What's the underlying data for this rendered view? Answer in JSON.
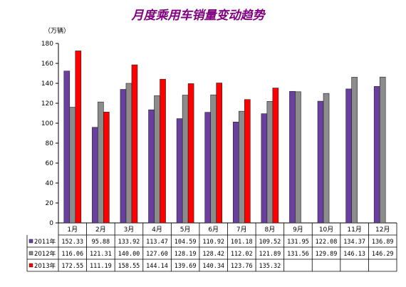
{
  "chart_data": {
    "type": "bar",
    "title": "月度乘用车销量变动趋势",
    "unit_label": "（万辆）",
    "ylim": [
      0,
      180
    ],
    "yticks": [
      0,
      20,
      40,
      60,
      80,
      100,
      120,
      140,
      160,
      180
    ],
    "grid": false,
    "legend": "data-table-bottom",
    "categories": [
      "1月",
      "2月",
      "3月",
      "4月",
      "5月",
      "6月",
      "7月",
      "8月",
      "9月",
      "10月",
      "11月",
      "12月"
    ],
    "series": [
      {
        "name": "2011年",
        "color": "#6a3fa0",
        "values": [
          152.33,
          95.88,
          133.92,
          113.47,
          104.59,
          110.92,
          101.18,
          109.52,
          131.95,
          122.08,
          134.37,
          136.89
        ],
        "labels": [
          "152.33",
          "95.88",
          "133.92",
          "113.47",
          "104.59",
          "110.92",
          "101.18",
          "109.52",
          "131.95",
          "122.08",
          "134.37",
          "136.89"
        ]
      },
      {
        "name": "2012年",
        "color": "#8c8c8c",
        "values": [
          116.06,
          121.31,
          140.0,
          127.6,
          128.19,
          128.42,
          112.02,
          121.89,
          131.56,
          129.89,
          146.13,
          146.29
        ],
        "labels": [
          "116.06",
          "121.31",
          "140.00",
          "127.60",
          "128.19",
          "128.42",
          "112.02",
          "121.89",
          "131.56",
          "129.89",
          "146.13",
          "146.29"
        ]
      },
      {
        "name": "2013年",
        "color": "#ff0000",
        "values": [
          172.55,
          111.19,
          158.55,
          144.14,
          139.69,
          140.34,
          123.76,
          135.32,
          null,
          null,
          null,
          null
        ],
        "labels": [
          "172.55",
          "111.19",
          "158.55",
          "144.14",
          "139.69",
          "140.34",
          "123.76",
          "135.32",
          "",
          "",
          "",
          ""
        ]
      }
    ]
  }
}
